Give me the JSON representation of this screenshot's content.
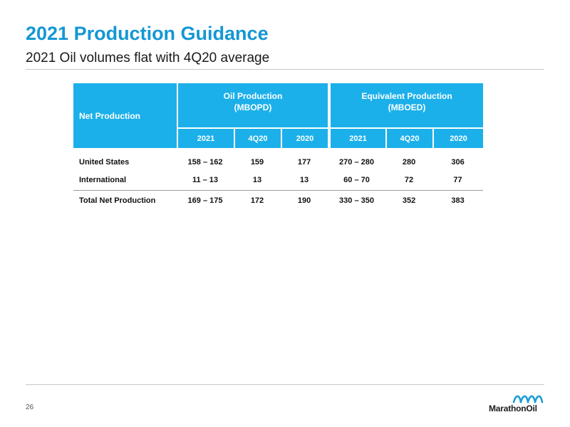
{
  "slide": {
    "title": "2021 Production Guidance",
    "subtitle": "2021 Oil volumes flat with 4Q20 average",
    "page_number": "26",
    "logo_text": "MarathonOil"
  },
  "table": {
    "row_header": "Net Production",
    "groups": [
      {
        "line1": "Oil Production",
        "line2": "(MBOPD)"
      },
      {
        "line1": "Equivalent Production",
        "line2": "(MBOED)"
      }
    ],
    "subheaders": [
      "2021",
      "4Q20",
      "2020",
      "2021",
      "4Q20",
      "2020"
    ],
    "rows": [
      {
        "label": "United States",
        "values": [
          "158 – 162",
          "159",
          "177",
          "270 – 280",
          "280",
          "306"
        ]
      },
      {
        "label": "International",
        "values": [
          "11 – 13",
          "13",
          "13",
          "60 – 70",
          "72",
          "77"
        ]
      },
      {
        "label": "Total Net Production",
        "values": [
          "169 – 175",
          "172",
          "190",
          "330 – 350",
          "352",
          "383"
        ]
      }
    ]
  },
  "colors": {
    "title": "#1497d4",
    "header_fill": "#1cb0ea",
    "logo_blue": "#1a9fd8"
  },
  "icons": {
    "logo": "marathon-oil-wave-logo-icon"
  }
}
